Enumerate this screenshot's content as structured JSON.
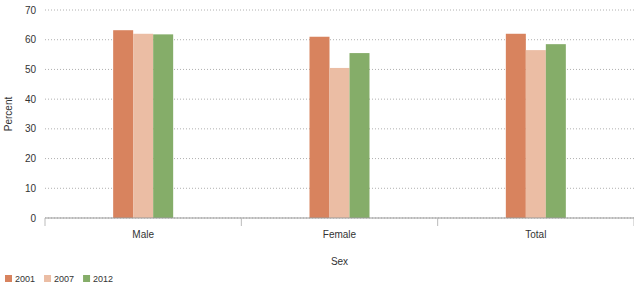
{
  "chart_data": {
    "type": "bar",
    "x_label": "Sex",
    "y_label": "Percent",
    "categories": [
      "Male",
      "Female",
      "Total"
    ],
    "series": [
      {
        "name": "2001",
        "color": "#d8835e",
        "values": [
          63.2,
          61,
          62
        ]
      },
      {
        "name": "2007",
        "color": "#ebbda4",
        "values": [
          62,
          50.5,
          56.5
        ]
      },
      {
        "name": "2012",
        "color": "#85ad69",
        "values": [
          61.8,
          55.5,
          58.5
        ]
      }
    ],
    "ylim": [
      0,
      70
    ],
    "yticks": [
      0,
      10,
      20,
      30,
      40,
      50,
      60,
      70
    ],
    "grid": true,
    "legend": "bottom-left"
  }
}
